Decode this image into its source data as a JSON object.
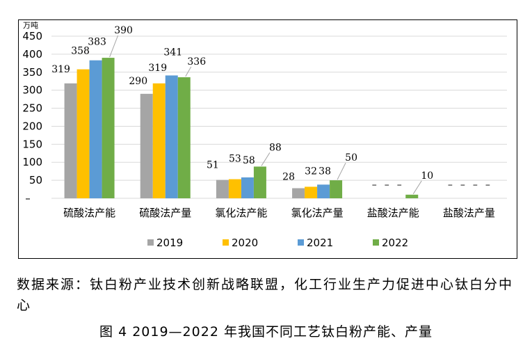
{
  "chart_data": {
    "type": "bar",
    "unit": "万吨",
    "ylim": [
      0,
      450
    ],
    "yticks": [
      50,
      100,
      150,
      200,
      250,
      300,
      350,
      400,
      450
    ],
    "zero_tick_label": "–",
    "grid": true,
    "legend_position": "bottom",
    "categories": [
      "硫酸法产能",
      "硫酸法产量",
      "氯化法产能",
      "氯化法产量",
      "盐酸法产能",
      "盐酸法产量"
    ],
    "series": [
      {
        "name": "2019",
        "color": "#a5a5a5",
        "values": [
          319,
          290,
          51,
          28,
          null,
          null
        ],
        "labels": [
          "319",
          "290",
          "51",
          "28",
          "–",
          "–"
        ]
      },
      {
        "name": "2020",
        "color": "#ffc000",
        "values": [
          358,
          319,
          53,
          32,
          null,
          null
        ],
        "labels": [
          "358",
          "319",
          "53",
          "32",
          "–",
          "–"
        ]
      },
      {
        "name": "2021",
        "color": "#5b9bd5",
        "values": [
          383,
          341,
          58,
          38,
          null,
          null
        ],
        "labels": [
          "383",
          "341",
          "58",
          "38",
          "–",
          "–"
        ]
      },
      {
        "name": "2022",
        "color": "#70ad47",
        "values": [
          390,
          336,
          88,
          50,
          10,
          null
        ],
        "labels": [
          "390",
          "336",
          "88",
          "50",
          "10",
          "–"
        ]
      }
    ]
  },
  "source_note": "数据来源：钛白粉产业技术创新战略联盟，化工行业生产力促进中心钛白分中心",
  "caption": "图 4  2019—2022 年我国不同工艺钛白粉产能、产量"
}
